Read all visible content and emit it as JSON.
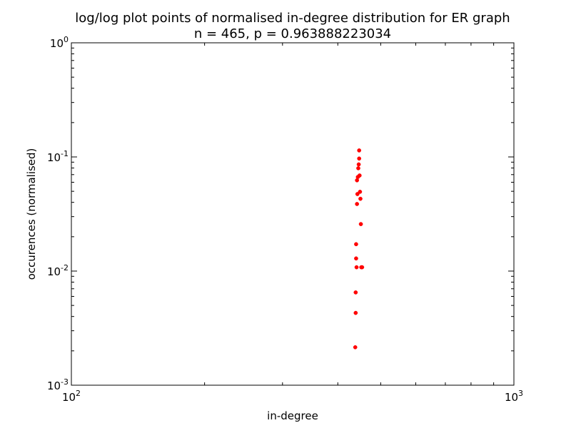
{
  "chart_data": {
    "type": "scatter",
    "title_line1": "log/log plot points of normalised in-degree distribution for ER graph",
    "title_line2": "n = 465, p = 0.963888223034",
    "xlabel": "in-degree",
    "ylabel": "occurences (normalised)",
    "xscale": "log",
    "yscale": "log",
    "xlim": [
      100,
      1000
    ],
    "ylim": [
      0.001,
      1
    ],
    "x_ticks": [
      {
        "value": 100,
        "base": "10",
        "exp": "2"
      },
      {
        "value": 1000,
        "base": "10",
        "exp": "3"
      }
    ],
    "y_ticks": [
      {
        "value": 0.001,
        "base": "10",
        "exp": "-3"
      },
      {
        "value": 0.01,
        "base": "10",
        "exp": "-2"
      },
      {
        "value": 0.1,
        "base": "10",
        "exp": "-1"
      },
      {
        "value": 1,
        "base": "10",
        "exp": "0"
      }
    ],
    "grid": false,
    "marker_color": "#ff0000",
    "points": [
      {
        "x": 438,
        "y": 0.00215
      },
      {
        "x": 439,
        "y": 0.0043
      },
      {
        "x": 439,
        "y": 0.0065
      },
      {
        "x": 440,
        "y": 0.0129
      },
      {
        "x": 440,
        "y": 0.0172
      },
      {
        "x": 441,
        "y": 0.0108
      },
      {
        "x": 442,
        "y": 0.0387
      },
      {
        "x": 442,
        "y": 0.0624
      },
      {
        "x": 443,
        "y": 0.0473
      },
      {
        "x": 444,
        "y": 0.0667
      },
      {
        "x": 445,
        "y": 0.0796
      },
      {
        "x": 446,
        "y": 0.086
      },
      {
        "x": 447,
        "y": 0.0968
      },
      {
        "x": 447,
        "y": 0.114
      },
      {
        "x": 448,
        "y": 0.0688
      },
      {
        "x": 449,
        "y": 0.0495
      },
      {
        "x": 450,
        "y": 0.043
      },
      {
        "x": 451,
        "y": 0.0258
      },
      {
        "x": 452,
        "y": 0.0108
      },
      {
        "x": 454,
        "y": 0.0108
      }
    ]
  }
}
